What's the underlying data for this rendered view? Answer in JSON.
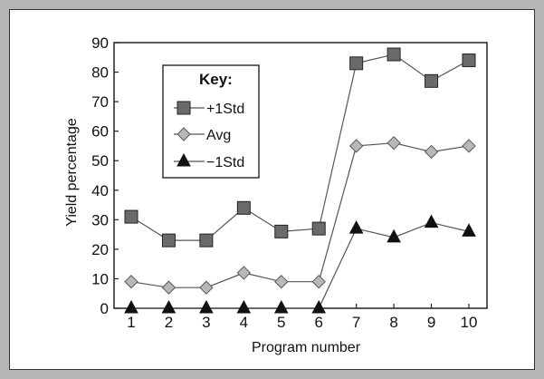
{
  "chart_data": {
    "type": "line",
    "xlabel": "Program number",
    "ylabel": "Yield percentage",
    "x": [
      1,
      2,
      3,
      4,
      5,
      6,
      7,
      8,
      9,
      10
    ],
    "ylim": [
      0,
      90
    ],
    "yticks": [
      0,
      10,
      20,
      30,
      40,
      50,
      60,
      70,
      80,
      90
    ],
    "grid": false,
    "legend": {
      "title": "Key:",
      "position": "top-left"
    },
    "series": [
      {
        "name": "+1Std",
        "marker": "square",
        "values": [
          31,
          23,
          23,
          34,
          26,
          27,
          83,
          86,
          77,
          84
        ]
      },
      {
        "name": "Avg",
        "marker": "diamond",
        "values": [
          9,
          7,
          7,
          12,
          9,
          9,
          55,
          56,
          53,
          55
        ]
      },
      {
        "name": "−1Std",
        "marker": "triangle",
        "values": [
          0,
          0,
          0,
          0,
          0,
          0,
          27,
          24,
          29,
          26
        ]
      }
    ],
    "colors": {
      "line": "#555555",
      "square_fill": "#6a6a6a",
      "diamond_fill": "#b8b8b8",
      "triangle_fill": "#111111",
      "frame": "#b5b5b5"
    }
  }
}
